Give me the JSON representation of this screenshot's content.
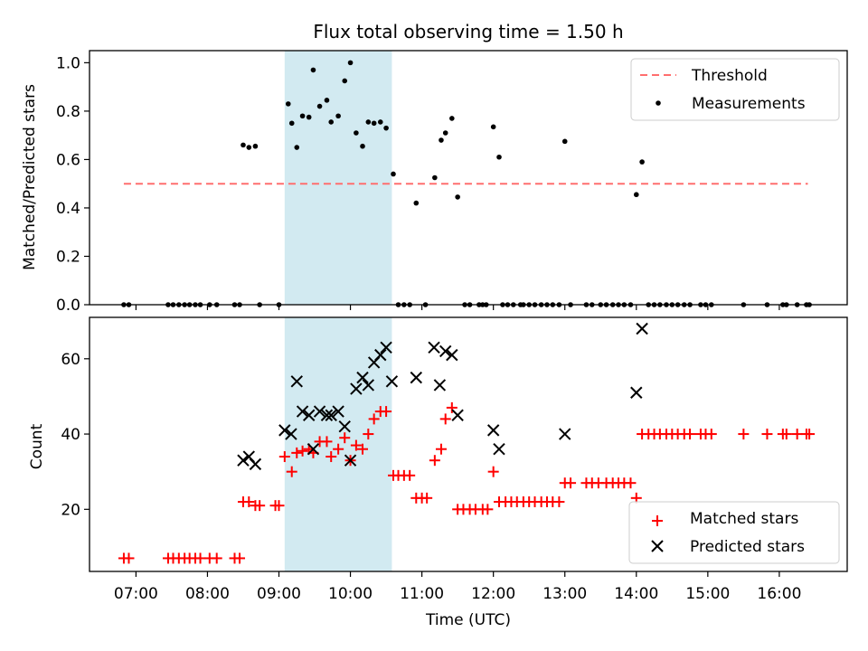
{
  "chart_data": [
    {
      "type": "scatter",
      "title": "Flux total observing time = 1.50 h",
      "xlabel": "",
      "ylabel": "Matched/Predicted stars",
      "xlim_hours": [
        6.35,
        16.95
      ],
      "ylim": [
        0,
        1.05
      ],
      "grid": false,
      "legend_placement": "upper right",
      "highlight_window_hours": [
        9.08,
        10.58
      ],
      "highlight_color": "#add8e6",
      "threshold": {
        "name": "Threshold",
        "value": 0.5,
        "x_range_hours": [
          6.83,
          16.4
        ],
        "color": "#ff6e6e"
      },
      "x_ticks": [
        "07:00",
        "08:00",
        "09:00",
        "10:00",
        "11:00",
        "12:00",
        "13:00",
        "14:00",
        "15:00",
        "16:00"
      ],
      "y_ticks": [
        "0.0",
        "0.2",
        "0.4",
        "0.6",
        "0.8",
        "1.0"
      ],
      "series": [
        {
          "name": "Measurements",
          "color": "#000000",
          "marker": "dot",
          "points": [
            [
              6.83,
              0
            ],
            [
              6.9,
              0
            ],
            [
              7.45,
              0
            ],
            [
              7.52,
              0
            ],
            [
              7.6,
              0
            ],
            [
              7.68,
              0
            ],
            [
              7.75,
              0
            ],
            [
              7.83,
              0
            ],
            [
              7.9,
              0
            ],
            [
              8.03,
              0
            ],
            [
              8.13,
              0
            ],
            [
              8.38,
              0
            ],
            [
              8.45,
              0
            ],
            [
              8.5,
              0.66
            ],
            [
              8.58,
              0.65
            ],
            [
              8.67,
              0.655
            ],
            [
              8.73,
              0
            ],
            [
              9.0,
              0
            ],
            [
              9.13,
              0.83
            ],
            [
              9.18,
              0.75
            ],
            [
              9.25,
              0.65
            ],
            [
              9.33,
              0.78
            ],
            [
              9.42,
              0.775
            ],
            [
              9.48,
              0.97
            ],
            [
              9.57,
              0.82
            ],
            [
              9.67,
              0.845
            ],
            [
              9.73,
              0.755
            ],
            [
              9.83,
              0.78
            ],
            [
              9.92,
              0.925
            ],
            [
              10.0,
              1.0
            ],
            [
              10.08,
              0.71
            ],
            [
              10.17,
              0.655
            ],
            [
              10.25,
              0.755
            ],
            [
              10.33,
              0.75
            ],
            [
              10.42,
              0.755
            ],
            [
              10.5,
              0.73
            ],
            [
              10.6,
              0.54
            ],
            [
              10.67,
              0
            ],
            [
              10.75,
              0
            ],
            [
              10.83,
              0
            ],
            [
              10.92,
              0.42
            ],
            [
              11.05,
              0
            ],
            [
              11.18,
              0.525
            ],
            [
              11.27,
              0.68
            ],
            [
              11.33,
              0.71
            ],
            [
              11.42,
              0.77
            ],
            [
              11.5,
              0.445
            ],
            [
              11.6,
              0
            ],
            [
              11.67,
              0
            ],
            [
              11.8,
              0
            ],
            [
              11.85,
              0
            ],
            [
              11.9,
              0
            ],
            [
              12.0,
              0.735
            ],
            [
              12.08,
              0.61
            ],
            [
              12.13,
              0
            ],
            [
              12.2,
              0
            ],
            [
              12.28,
              0
            ],
            [
              12.38,
              0
            ],
            [
              12.42,
              0
            ],
            [
              12.5,
              0
            ],
            [
              12.58,
              0
            ],
            [
              12.67,
              0
            ],
            [
              12.75,
              0
            ],
            [
              12.83,
              0
            ],
            [
              12.92,
              0
            ],
            [
              13.0,
              0.675
            ],
            [
              13.08,
              0
            ],
            [
              13.3,
              0
            ],
            [
              13.38,
              0
            ],
            [
              13.5,
              0
            ],
            [
              13.58,
              0
            ],
            [
              13.67,
              0
            ],
            [
              13.75,
              0
            ],
            [
              13.83,
              0
            ],
            [
              13.92,
              0
            ],
            [
              14.0,
              0.455
            ],
            [
              14.08,
              0.59
            ],
            [
              14.17,
              0
            ],
            [
              14.25,
              0
            ],
            [
              14.33,
              0
            ],
            [
              14.42,
              0
            ],
            [
              14.5,
              0
            ],
            [
              14.58,
              0
            ],
            [
              14.67,
              0
            ],
            [
              14.75,
              0
            ],
            [
              14.9,
              0
            ],
            [
              14.97,
              0
            ],
            [
              15.05,
              0
            ],
            [
              15.5,
              0
            ],
            [
              15.83,
              0
            ],
            [
              16.05,
              0
            ],
            [
              16.1,
              0
            ],
            [
              16.25,
              0
            ],
            [
              16.38,
              0
            ],
            [
              16.42,
              0
            ]
          ]
        }
      ]
    },
    {
      "type": "scatter",
      "title": "",
      "xlabel": "Time (UTC)",
      "ylabel": "Count",
      "xlim_hours": [
        6.35,
        16.95
      ],
      "ylim": [
        3.5,
        71
      ],
      "grid": false,
      "legend_placement": "lower right",
      "highlight_window_hours": [
        9.08,
        10.58
      ],
      "highlight_color": "#add8e6",
      "x_ticks": [
        "07:00",
        "08:00",
        "09:00",
        "10:00",
        "11:00",
        "12:00",
        "13:00",
        "14:00",
        "15:00",
        "16:00"
      ],
      "y_ticks": [
        "20",
        "40",
        "60"
      ],
      "series": [
        {
          "name": "Matched stars",
          "color": "#ff0000",
          "marker": "plus",
          "points": [
            [
              6.83,
              7
            ],
            [
              6.9,
              7
            ],
            [
              7.45,
              7
            ],
            [
              7.52,
              7
            ],
            [
              7.6,
              7
            ],
            [
              7.68,
              7
            ],
            [
              7.75,
              7
            ],
            [
              7.83,
              7
            ],
            [
              7.9,
              7
            ],
            [
              8.03,
              7
            ],
            [
              8.13,
              7
            ],
            [
              8.38,
              7
            ],
            [
              8.45,
              7
            ],
            [
              8.5,
              22
            ],
            [
              8.58,
              22
            ],
            [
              8.67,
              21
            ],
            [
              8.73,
              21
            ],
            [
              8.95,
              21
            ],
            [
              9.0,
              21
            ],
            [
              9.08,
              34
            ],
            [
              9.18,
              30
            ],
            [
              9.25,
              35
            ],
            [
              9.33,
              35.5
            ],
            [
              9.42,
              36
            ],
            [
              9.48,
              35
            ],
            [
              9.57,
              38
            ],
            [
              9.67,
              38
            ],
            [
              9.73,
              34
            ],
            [
              9.83,
              36
            ],
            [
              9.92,
              39
            ],
            [
              10.0,
              33
            ],
            [
              10.08,
              37
            ],
            [
              10.17,
              36
            ],
            [
              10.25,
              40
            ],
            [
              10.33,
              44
            ],
            [
              10.42,
              46
            ],
            [
              10.5,
              46
            ],
            [
              10.6,
              29
            ],
            [
              10.67,
              29
            ],
            [
              10.75,
              29
            ],
            [
              10.83,
              29
            ],
            [
              10.92,
              23
            ],
            [
              11.0,
              23
            ],
            [
              11.07,
              23
            ],
            [
              11.18,
              33
            ],
            [
              11.27,
              36
            ],
            [
              11.33,
              44
            ],
            [
              11.42,
              47
            ],
            [
              11.5,
              20
            ],
            [
              11.58,
              20
            ],
            [
              11.67,
              20
            ],
            [
              11.75,
              20
            ],
            [
              11.85,
              20
            ],
            [
              11.92,
              20
            ],
            [
              12.0,
              30
            ],
            [
              12.08,
              22
            ],
            [
              12.17,
              22
            ],
            [
              12.25,
              22
            ],
            [
              12.33,
              22
            ],
            [
              12.42,
              22
            ],
            [
              12.5,
              22
            ],
            [
              12.58,
              22
            ],
            [
              12.67,
              22
            ],
            [
              12.75,
              22
            ],
            [
              12.83,
              22
            ],
            [
              12.92,
              22
            ],
            [
              13.0,
              27
            ],
            [
              13.08,
              27
            ],
            [
              13.3,
              27
            ],
            [
              13.38,
              27
            ],
            [
              13.47,
              27
            ],
            [
              13.58,
              27
            ],
            [
              13.67,
              27
            ],
            [
              13.75,
              27
            ],
            [
              13.83,
              27
            ],
            [
              13.92,
              27
            ],
            [
              14.0,
              23
            ],
            [
              14.08,
              40
            ],
            [
              14.17,
              40
            ],
            [
              14.25,
              40
            ],
            [
              14.33,
              40
            ],
            [
              14.42,
              40
            ],
            [
              14.5,
              40
            ],
            [
              14.58,
              40
            ],
            [
              14.67,
              40
            ],
            [
              14.75,
              40
            ],
            [
              14.9,
              40
            ],
            [
              14.97,
              40
            ],
            [
              15.05,
              40
            ],
            [
              15.5,
              40
            ],
            [
              15.83,
              40
            ],
            [
              16.05,
              40
            ],
            [
              16.1,
              40
            ],
            [
              16.25,
              40
            ],
            [
              16.38,
              40
            ],
            [
              16.42,
              40
            ]
          ]
        },
        {
          "name": "Predicted stars",
          "color": "#000000",
          "marker": "x",
          "points": [
            [
              8.5,
              33
            ],
            [
              8.58,
              34
            ],
            [
              8.67,
              32
            ],
            [
              9.08,
              41
            ],
            [
              9.17,
              40
            ],
            [
              9.25,
              54
            ],
            [
              9.33,
              46
            ],
            [
              9.42,
              45
            ],
            [
              9.48,
              36
            ],
            [
              9.57,
              46
            ],
            [
              9.67,
              45
            ],
            [
              9.73,
              45
            ],
            [
              9.83,
              46
            ],
            [
              9.92,
              42
            ],
            [
              10.0,
              33
            ],
            [
              10.08,
              52
            ],
            [
              10.17,
              55
            ],
            [
              10.25,
              53
            ],
            [
              10.33,
              59
            ],
            [
              10.42,
              61
            ],
            [
              10.5,
              63
            ],
            [
              10.58,
              54
            ],
            [
              10.92,
              55
            ],
            [
              11.17,
              63
            ],
            [
              11.25,
              53
            ],
            [
              11.33,
              62
            ],
            [
              11.42,
              61
            ],
            [
              11.5,
              45
            ],
            [
              12.0,
              41
            ],
            [
              12.08,
              36
            ],
            [
              13.0,
              40
            ],
            [
              14.0,
              51
            ],
            [
              14.08,
              68
            ]
          ]
        }
      ]
    }
  ]
}
